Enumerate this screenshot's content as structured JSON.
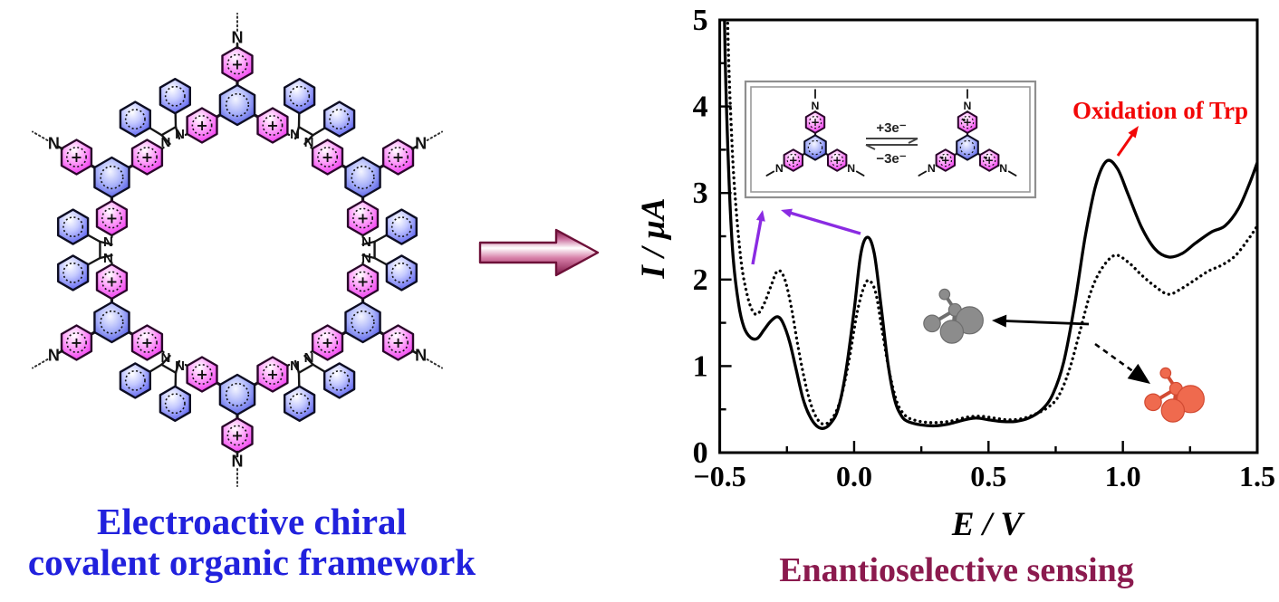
{
  "left_panel": {
    "caption": {
      "line1": "Electroactive chiral",
      "line2": "covalent organic framework",
      "color": "#2121dd"
    },
    "structure_labels": {
      "nitrogen": "N",
      "charge": "+"
    }
  },
  "transition_arrow": {
    "direction": "right",
    "color": "#8d1a4e"
  },
  "right_panel": {
    "caption": {
      "text": "Enantioselective sensing",
      "color": "#8b1a4e"
    },
    "oxidation_label": "Oxidation of Trp",
    "oxidation_color": "#f20707",
    "inset": {
      "forward_label": "+3e⁻",
      "backward_label": "−3e⁻"
    },
    "molecule_colors": {
      "gray": "#8c8c8c",
      "orange": "#ef6a4e"
    },
    "pointer_color": "#8a2be2"
  },
  "chart_data": {
    "type": "line",
    "title": "",
    "xlabel": "E / V",
    "ylabel": "I / µA",
    "xlim": [
      -0.5,
      1.5
    ],
    "ylim": [
      0,
      5
    ],
    "grid": false,
    "legend": "none",
    "x_ticks": {
      "values": [
        -0.5,
        0.0,
        0.5,
        1.0,
        1.5
      ],
      "labels": [
        "−0.5",
        "0.0",
        "0.5",
        "1.0",
        "1.5"
      ],
      "minor_step": 0.25
    },
    "y_ticks": {
      "values": [
        0,
        1,
        2,
        3,
        4,
        5
      ],
      "labels": [
        "0",
        "1",
        "2",
        "3",
        "4",
        "5"
      ],
      "minor_step": 0.5
    },
    "annotations": [
      {
        "text": "Oxidation of Trp",
        "E": 0.94,
        "I": 3.37,
        "color": "#f20707"
      }
    ],
    "series": [
      {
        "name": "solid-voltammogram",
        "style": "solid",
        "color": "#000000",
        "points": [
          [
            -0.492,
            7.0
          ],
          [
            -0.48,
            4.6
          ],
          [
            -0.465,
            3.1
          ],
          [
            -0.45,
            2.25
          ],
          [
            -0.43,
            1.72
          ],
          [
            -0.41,
            1.45
          ],
          [
            -0.385,
            1.33
          ],
          [
            -0.36,
            1.32
          ],
          [
            -0.335,
            1.42
          ],
          [
            -0.31,
            1.52
          ],
          [
            -0.285,
            1.57
          ],
          [
            -0.265,
            1.5
          ],
          [
            -0.24,
            1.28
          ],
          [
            -0.215,
            0.95
          ],
          [
            -0.19,
            0.62
          ],
          [
            -0.165,
            0.42
          ],
          [
            -0.14,
            0.31
          ],
          [
            -0.115,
            0.28
          ],
          [
            -0.09,
            0.33
          ],
          [
            -0.06,
            0.5
          ],
          [
            -0.03,
            0.95
          ],
          [
            0.0,
            1.65
          ],
          [
            0.025,
            2.3
          ],
          [
            0.05,
            2.49
          ],
          [
            0.075,
            2.3
          ],
          [
            0.1,
            1.7
          ],
          [
            0.125,
            1.05
          ],
          [
            0.15,
            0.62
          ],
          [
            0.175,
            0.43
          ],
          [
            0.2,
            0.36
          ],
          [
            0.25,
            0.32
          ],
          [
            0.3,
            0.31
          ],
          [
            0.35,
            0.33
          ],
          [
            0.4,
            0.37
          ],
          [
            0.45,
            0.4
          ],
          [
            0.5,
            0.38
          ],
          [
            0.55,
            0.36
          ],
          [
            0.6,
            0.36
          ],
          [
            0.65,
            0.4
          ],
          [
            0.7,
            0.5
          ],
          [
            0.74,
            0.68
          ],
          [
            0.78,
            1.05
          ],
          [
            0.82,
            1.7
          ],
          [
            0.86,
            2.5
          ],
          [
            0.9,
            3.1
          ],
          [
            0.94,
            3.37
          ],
          [
            0.98,
            3.28
          ],
          [
            1.02,
            2.98
          ],
          [
            1.07,
            2.6
          ],
          [
            1.12,
            2.35
          ],
          [
            1.17,
            2.26
          ],
          [
            1.22,
            2.3
          ],
          [
            1.27,
            2.42
          ],
          [
            1.33,
            2.55
          ],
          [
            1.38,
            2.62
          ],
          [
            1.43,
            2.82
          ],
          [
            1.47,
            3.1
          ],
          [
            1.5,
            3.35
          ]
        ]
      },
      {
        "name": "dotted-voltammogram",
        "style": "dotted",
        "color": "#000000",
        "points": [
          [
            -0.482,
            7.0
          ],
          [
            -0.47,
            4.9
          ],
          [
            -0.455,
            3.6
          ],
          [
            -0.44,
            2.85
          ],
          [
            -0.42,
            2.2
          ],
          [
            -0.4,
            1.85
          ],
          [
            -0.38,
            1.65
          ],
          [
            -0.36,
            1.6
          ],
          [
            -0.335,
            1.72
          ],
          [
            -0.31,
            1.92
          ],
          [
            -0.285,
            2.1
          ],
          [
            -0.26,
            2.02
          ],
          [
            -0.235,
            1.7
          ],
          [
            -0.21,
            1.25
          ],
          [
            -0.185,
            0.85
          ],
          [
            -0.16,
            0.55
          ],
          [
            -0.135,
            0.38
          ],
          [
            -0.11,
            0.33
          ],
          [
            -0.08,
            0.4
          ],
          [
            -0.05,
            0.62
          ],
          [
            -0.02,
            1.05
          ],
          [
            0.01,
            1.6
          ],
          [
            0.035,
            1.9
          ],
          [
            0.055,
            1.99
          ],
          [
            0.08,
            1.85
          ],
          [
            0.105,
            1.4
          ],
          [
            0.13,
            0.95
          ],
          [
            0.16,
            0.58
          ],
          [
            0.19,
            0.43
          ],
          [
            0.22,
            0.38
          ],
          [
            0.27,
            0.35
          ],
          [
            0.32,
            0.35
          ],
          [
            0.37,
            0.37
          ],
          [
            0.42,
            0.41
          ],
          [
            0.47,
            0.42
          ],
          [
            0.52,
            0.4
          ],
          [
            0.57,
            0.38
          ],
          [
            0.62,
            0.39
          ],
          [
            0.67,
            0.44
          ],
          [
            0.72,
            0.52
          ],
          [
            0.76,
            0.65
          ],
          [
            0.8,
            0.95
          ],
          [
            0.84,
            1.4
          ],
          [
            0.88,
            1.85
          ],
          [
            0.92,
            2.12
          ],
          [
            0.97,
            2.28
          ],
          [
            1.02,
            2.2
          ],
          [
            1.07,
            2.05
          ],
          [
            1.12,
            1.92
          ],
          [
            1.17,
            1.83
          ],
          [
            1.22,
            1.9
          ],
          [
            1.27,
            2.0
          ],
          [
            1.32,
            2.1
          ],
          [
            1.37,
            2.17
          ],
          [
            1.42,
            2.28
          ],
          [
            1.47,
            2.48
          ],
          [
            1.5,
            2.62
          ]
        ]
      }
    ]
  }
}
